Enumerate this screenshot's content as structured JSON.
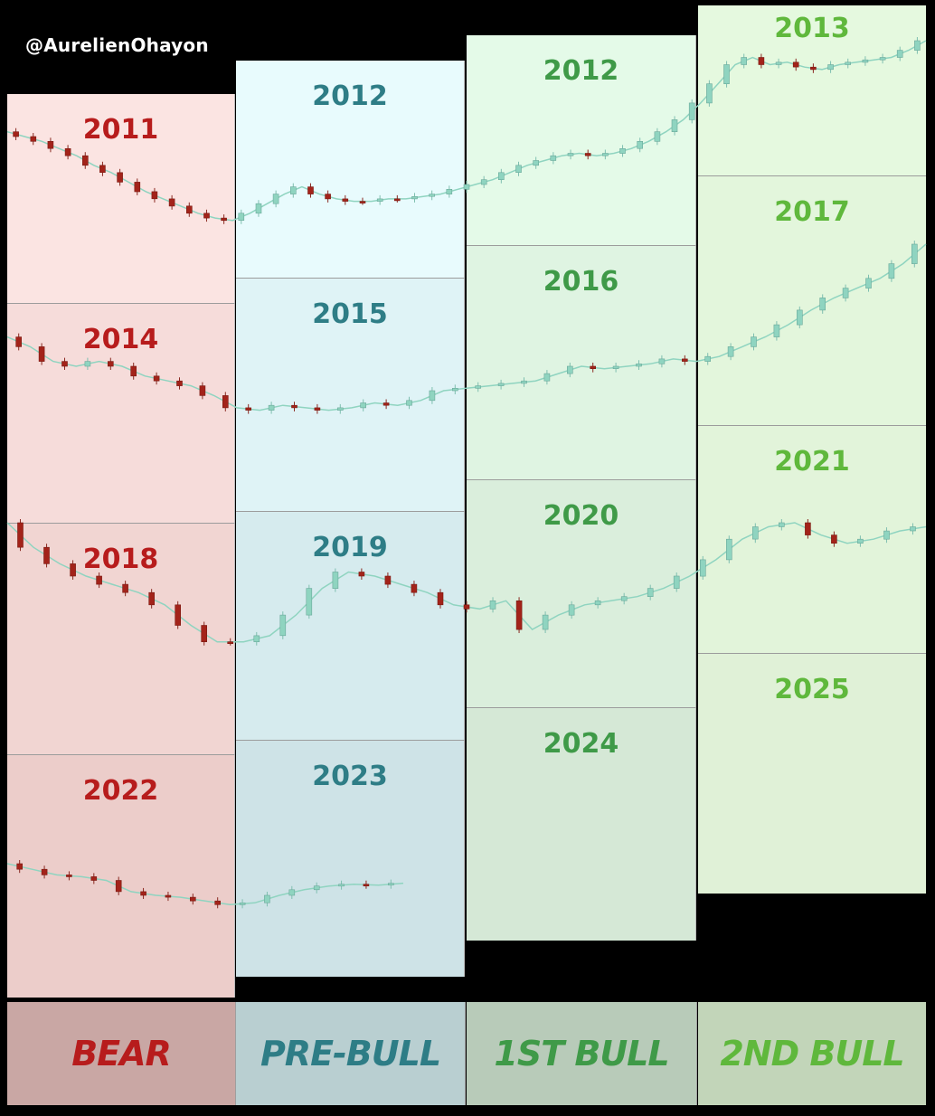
{
  "watermark": "@AurelienOhayon",
  "colors": {
    "bear": "#b71c1c",
    "prebull": "#2e7d86",
    "bull1": "#3f9a48",
    "bull2": "#5fb83c",
    "candle_up": "#8fd4c0",
    "candle_down": "#a3231a",
    "line_price": "#8fd4c0"
  },
  "phases": [
    {
      "key": "bear",
      "label": "BEAR"
    },
    {
      "key": "prebull",
      "label": "PRE-BULL"
    },
    {
      "key": "bull1",
      "label": "1ST BULL"
    },
    {
      "key": "bull2",
      "label": "2ND BULL"
    }
  ],
  "cycles": [
    {
      "years": [
        "2011",
        "2012",
        "2012",
        "2013"
      ]
    },
    {
      "years": [
        "2014",
        "2015",
        "2016",
        "2017"
      ]
    },
    {
      "years": [
        "2018",
        "2019",
        "2020",
        "2021"
      ]
    },
    {
      "years": [
        "2022",
        "2023",
        "2024",
        "2025"
      ]
    }
  ],
  "chart_data": {
    "type": "line",
    "title": "",
    "xlabel": "",
    "ylabel": "",
    "note": "Relative price path per cycle year, 0 = low, 1 = high of each cycle row (no axis printed)",
    "series": [
      {
        "row": "2011-2013",
        "values": [
          0.62,
          0.6,
          0.58,
          0.55,
          0.52,
          0.48,
          0.45,
          0.41,
          0.37,
          0.34,
          0.31,
          0.28,
          0.26,
          0.25,
          0.28,
          0.32,
          0.36,
          0.39,
          0.36,
          0.34,
          0.33,
          0.33,
          0.34,
          0.34,
          0.35,
          0.36,
          0.38,
          0.4,
          0.42,
          0.45,
          0.48,
          0.5,
          0.52,
          0.53,
          0.52,
          0.53,
          0.55,
          0.58,
          0.62,
          0.67,
          0.74,
          0.82,
          0.9,
          0.93,
          0.9,
          0.91,
          0.89,
          0.88,
          0.9,
          0.91,
          0.92,
          0.93,
          0.96,
          1.0
        ]
      },
      {
        "row": "2014-2017",
        "values": [
          0.62,
          0.58,
          0.52,
          0.5,
          0.52,
          0.5,
          0.46,
          0.44,
          0.42,
          0.38,
          0.33,
          0.32,
          0.34,
          0.33,
          0.32,
          0.33,
          0.35,
          0.34,
          0.36,
          0.4,
          0.41,
          0.42,
          0.43,
          0.44,
          0.47,
          0.5,
          0.49,
          0.5,
          0.51,
          0.53,
          0.52,
          0.54,
          0.58,
          0.62,
          0.67,
          0.73,
          0.78,
          0.82,
          0.86,
          0.92,
          1.0
        ]
      },
      {
        "row": "2018-2021",
        "values": [
          1.0,
          0.88,
          0.8,
          0.74,
          0.7,
          0.66,
          0.6,
          0.5,
          0.42,
          0.42,
          0.45,
          0.55,
          0.68,
          0.76,
          0.74,
          0.7,
          0.66,
          0.6,
          0.58,
          0.62,
          0.48,
          0.55,
          0.6,
          0.62,
          0.64,
          0.68,
          0.74,
          0.82,
          0.92,
          0.98,
          1.0,
          0.94,
          0.9,
          0.92,
          0.96,
          0.98
        ]
      },
      {
        "row": "2022-2025",
        "values": [
          1.0,
          0.94,
          0.88,
          0.86,
          0.82,
          0.7,
          0.66,
          0.64,
          0.6,
          0.56,
          0.58,
          0.66,
          0.72,
          0.76,
          0.78,
          0.77,
          0.79
        ]
      }
    ]
  }
}
